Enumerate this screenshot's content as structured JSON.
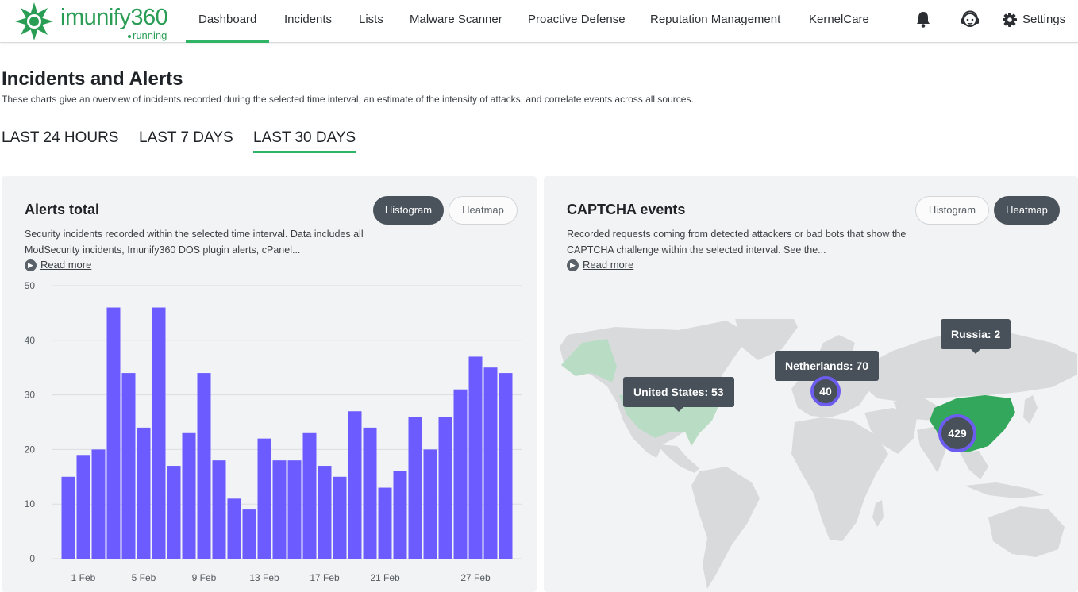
{
  "app": {
    "logo_text": "imunify360",
    "status": "running",
    "nav": [
      {
        "label": "Dashboard",
        "active": true
      },
      {
        "label": "Incidents",
        "active": false
      },
      {
        "label": "Lists",
        "active": false
      },
      {
        "label": "Malware Scanner",
        "active": false
      },
      {
        "label": "Proactive Defense",
        "active": false
      },
      {
        "label": "Reputation Management",
        "active": false
      },
      {
        "label": "KernelCare",
        "active": false
      }
    ],
    "icons": {
      "notifications": "bell-icon",
      "support": "support-agent-icon",
      "settings": "gear-icon"
    },
    "settings_label": "Settings",
    "accent_color": "#2fb364"
  },
  "page": {
    "title": "Incidents and Alerts",
    "subtitle": "These charts give an overview of incidents recorded during the selected time interval, an estimate of the intensity of attacks, and correlate events across all sources.",
    "ranges": [
      {
        "label": "LAST 24 HOURS",
        "active": false
      },
      {
        "label": "LAST 7 DAYS",
        "active": false
      },
      {
        "label": "LAST 30 DAYS",
        "active": true
      }
    ]
  },
  "alerts_card": {
    "title": "Alerts total",
    "toggle_histogram": "Histogram",
    "toggle_heatmap": "Heatmap",
    "selected_view": "Histogram",
    "description": "Security incidents recorded within the selected time interval. Data includes all ModSecurity incidents, Imunify360 DOS plugin alerts, cPanel...",
    "read_more": "Read more"
  },
  "captcha_card": {
    "title": "CAPTCHA events",
    "toggle_histogram": "Histogram",
    "toggle_heatmap": "Heatmap",
    "selected_view": "Heatmap",
    "description": "Recorded requests coming from detected attackers or bad bots that show the CAPTCHA challenge within the selected interval. See the...",
    "read_more": "Read more",
    "tooltips": {
      "us": "United States: 53",
      "nl": "Netherlands: 70",
      "ru": "Russia: 2"
    },
    "clusters": {
      "europe": "40",
      "china": "429"
    },
    "highlight_color": "#33a85c",
    "light_highlight_color": "#b9dcc4"
  },
  "chart_data": {
    "type": "bar",
    "title": "Alerts total",
    "color": "#6c5cff",
    "ylim": [
      0,
      50
    ],
    "yticks": [
      0,
      10,
      20,
      30,
      40,
      50
    ],
    "x_tick_labels": [
      "1 Feb",
      "5 Feb",
      "9 Feb",
      "13 Feb",
      "17 Feb",
      "21 Feb",
      "27 Feb"
    ],
    "x_tick_positions": [
      2,
      6,
      10,
      14,
      18,
      22,
      28
    ],
    "values": [
      15,
      19,
      20,
      46,
      34,
      24,
      46,
      17,
      23,
      34,
      18,
      11,
      9,
      22,
      18,
      18,
      23,
      17,
      15,
      27,
      24,
      13,
      16,
      26,
      20,
      26,
      31,
      37,
      35,
      34
    ],
    "grid": true
  }
}
